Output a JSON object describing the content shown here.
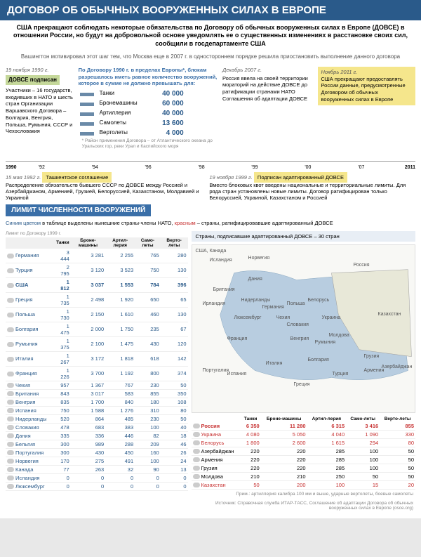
{
  "header": {
    "title": "ДОГОВОР ОБ ОБЫЧНЫХ ВООРУЖЕННЫХ СИЛАХ В ЕВРОПЕ",
    "intro": "США прекращают соблюдать некоторые обязательства по Договору об обычных вооруженных силах в Европе (ДОВСЕ) в отношении России, но будут на добровольной основе уведомлять ее о существенных изменениях в расстановке своих сил, сообщили в госдепартаменте США",
    "subintro": "Вашингтон мотивировал этот шаг тем, что Москва еще в 2007 г. в одностороннем порядке решила приостановить выполнение данного договора"
  },
  "top": {
    "date1": "19 ноября 1990 г.",
    "tag1": "ДОВСЕ подписан",
    "text1": "Участники – 16 государств, входивших в НАТО и шесть стран Организации Варшавского Договора – Болгария, Венгрия, Польша, Румыния, СССР и Чехословакия",
    "head2": "По Договору 1990 г. в пределах Европы*, блокам разрешалось иметь равное количество вооружений, которое в сумме не должно превышать для:",
    "date3": "Декабрь 2007 г.",
    "text3": "Россия ввела на своей территории мораторий на действие ДОВСЕ до ратификации странами НАТО Соглашения об адаптации ДОВСЕ",
    "date4": "Ноябрь 2011 г.",
    "text4": "США прекращают предоставлять России данные, предусмотренные Договором об обычных вооруженных силах в Европе",
    "equip": [
      {
        "label": "Танки",
        "num": "40 000"
      },
      {
        "label": "Бронемашины",
        "num": "60 000"
      },
      {
        "label": "Артиллерия",
        "num": "40 000"
      },
      {
        "label": "Самолеты",
        "num": "13 600"
      },
      {
        "label": "Вертолеты",
        "num": "4 000"
      }
    ],
    "equip_note": "* Район применения Договора – от Атлантического океана до Уральских гор, реки Урал и Каспийского моря"
  },
  "timeline": {
    "start": "1990",
    "end": "2011",
    "ticks": [
      "'92",
      "'94",
      "'96",
      "'98",
      "'99",
      "'00",
      "'07"
    ]
  },
  "mid": {
    "date_l": "15 мая 1992 г.",
    "tag_l": "Ташкентское соглашение",
    "text_l": "Распределение обязательств бывшего СССР по ДОВСЕ между Россией и Азербайджаном, Арменией, Грузией, Белоруссией, Казахстаном, Молдавией и Украиной",
    "date_r": "19 ноября 1999 г.",
    "tag_r": "Подписан адаптированный ДОВСЕ",
    "text_r": "Вместо блоковых квот введены национальные и территориальные лимиты. Для ряда стран установлены новые лимиты. Договор ратифицирован только Белоруссией, Украиной, Казахстаном и Россией",
    "banner": "ЛИМИТ ЧИСЛЕННОСТИ ВООРУЖЕНИЙ",
    "legend": "Синим цветом в таблице выделены нынешние страны-члены НАТО, красным – страны, ратифицировавшие адаптированный ДОВСЕ",
    "countries_box": "Страны, подписавшие адаптированный ДОВСЕ – 30 стран"
  },
  "table": {
    "caption": "Лимит по Договору 1999 г.",
    "cols": [
      "",
      "Танки",
      "Броне-машины",
      "Артил-лерия",
      "Само-леты",
      "Верто-леты"
    ],
    "rows": [
      {
        "c": "Германия",
        "v": [
          "3 444",
          "3 281",
          "2 255",
          "765",
          "280"
        ],
        "cls": "nato-row"
      },
      {
        "c": "Турция",
        "v": [
          "2 795",
          "3 120",
          "3 523",
          "750",
          "130"
        ],
        "cls": "nato-row"
      },
      {
        "c": "США",
        "v": [
          "1 812",
          "3 037",
          "1 553",
          "784",
          "396"
        ],
        "cls": "nato-row bold-row"
      },
      {
        "c": "Греция",
        "v": [
          "1 735",
          "2 498",
          "1 920",
          "650",
          "65"
        ],
        "cls": "nato-row"
      },
      {
        "c": "Польша",
        "v": [
          "1 730",
          "2 150",
          "1 610",
          "460",
          "130"
        ],
        "cls": "nato-row"
      },
      {
        "c": "Болгария",
        "v": [
          "1 475",
          "2 000",
          "1 750",
          "235",
          "67"
        ],
        "cls": "nato-row"
      },
      {
        "c": "Румыния",
        "v": [
          "1 375",
          "2 100",
          "1 475",
          "430",
          "120"
        ],
        "cls": "nato-row"
      },
      {
        "c": "Италия",
        "v": [
          "1 267",
          "3 172",
          "1 818",
          "618",
          "142"
        ],
        "cls": "nato-row"
      },
      {
        "c": "Франция",
        "v": [
          "1 226",
          "3 700",
          "1 192",
          "800",
          "374"
        ],
        "cls": "nato-row"
      },
      {
        "c": "Чехия",
        "v": [
          "957",
          "1 367",
          "767",
          "230",
          "50"
        ],
        "cls": "nato-row"
      },
      {
        "c": "Британия",
        "v": [
          "843",
          "3 017",
          "583",
          "855",
          "350"
        ],
        "cls": "nato-row"
      },
      {
        "c": "Венгрия",
        "v": [
          "835",
          "1 700",
          "840",
          "180",
          "108"
        ],
        "cls": "nato-row"
      },
      {
        "c": "Испания",
        "v": [
          "750",
          "1 588",
          "1 276",
          "310",
          "80"
        ],
        "cls": "nato-row"
      },
      {
        "c": "Нидерланды",
        "v": [
          "520",
          "864",
          "485",
          "230",
          "50"
        ],
        "cls": "nato-row"
      },
      {
        "c": "Словакия",
        "v": [
          "478",
          "683",
          "383",
          "100",
          "40"
        ],
        "cls": "nato-row"
      },
      {
        "c": "Дания",
        "v": [
          "335",
          "336",
          "446",
          "82",
          "18"
        ],
        "cls": "nato-row"
      },
      {
        "c": "Бельгия",
        "v": [
          "300",
          "989",
          "288",
          "209",
          "46"
        ],
        "cls": "nato-row"
      },
      {
        "c": "Португалия",
        "v": [
          "300",
          "430",
          "450",
          "160",
          "26"
        ],
        "cls": "nato-row"
      },
      {
        "c": "Норвегия",
        "v": [
          "170",
          "275",
          "491",
          "100",
          "24"
        ],
        "cls": "nato-row"
      },
      {
        "c": "Канада",
        "v": [
          "77",
          "263",
          "32",
          "90",
          "13"
        ],
        "cls": "nato-row"
      },
      {
        "c": "Исландия",
        "v": [
          "0",
          "0",
          "0",
          "0",
          "0"
        ],
        "cls": "nato-row"
      },
      {
        "c": "Люксембург",
        "v": [
          "0",
          "0",
          "0",
          "0",
          "0"
        ],
        "cls": "nato-row"
      }
    ]
  },
  "table2": {
    "rows": [
      {
        "c": "Россия",
        "v": [
          "6 350",
          "11 280",
          "6 315",
          "3 416",
          "855"
        ],
        "cls": "ratif-row bold-row"
      },
      {
        "c": "Украина",
        "v": [
          "4 080",
          "5 050",
          "4 040",
          "1 090",
          "330"
        ],
        "cls": "ratif-row"
      },
      {
        "c": "Белорусь",
        "v": [
          "1 800",
          "2 600",
          "1 615",
          "294",
          "80"
        ],
        "cls": "ratif-row"
      },
      {
        "c": "Азербайджан",
        "v": [
          "220",
          "220",
          "285",
          "100",
          "50"
        ],
        "cls": ""
      },
      {
        "c": "Армения",
        "v": [
          "220",
          "220",
          "285",
          "100",
          "50"
        ],
        "cls": ""
      },
      {
        "c": "Грузия",
        "v": [
          "220",
          "220",
          "285",
          "100",
          "50"
        ],
        "cls": ""
      },
      {
        "c": "Молдова",
        "v": [
          "210",
          "210",
          "250",
          "50",
          "50"
        ],
        "cls": ""
      },
      {
        "c": "Казахстан",
        "v": [
          "50",
          "200",
          "100",
          "15",
          "20"
        ],
        "cls": "ratif-row"
      }
    ]
  },
  "map": {
    "labels": [
      "США, Канада",
      "Исландия",
      "Норвегия",
      "Россия",
      "Британия",
      "Дания",
      "Нидерланды",
      "Белорусь",
      "Ирландия",
      "Германия",
      "Польша",
      "Украина",
      "Казахстан",
      "Люксембург",
      "Чехия",
      "Молдова",
      "Франция",
      "Словакия",
      "Венгрия",
      "Румыния",
      "Португалия",
      "Испания",
      "Италия",
      "Болгария",
      "Греция",
      "Турция",
      "Грузия",
      "Армения",
      "Азербайджан"
    ]
  },
  "note": "Прим.: артиллерия калибра 100 мм и выше, ударные вертолеты, боевые самолеты",
  "source": "Источник: Справочная служба ИТАР-ТАСС, Соглашение об адаптации Договора об обычных вооруженных силах в Европе (osce.org)",
  "colors": {
    "header_bg": "#2a5a8a",
    "nato": "#2a5a8a",
    "ratif": "#c73030",
    "green": "#c5d89a",
    "yellow": "#f5e68c"
  }
}
